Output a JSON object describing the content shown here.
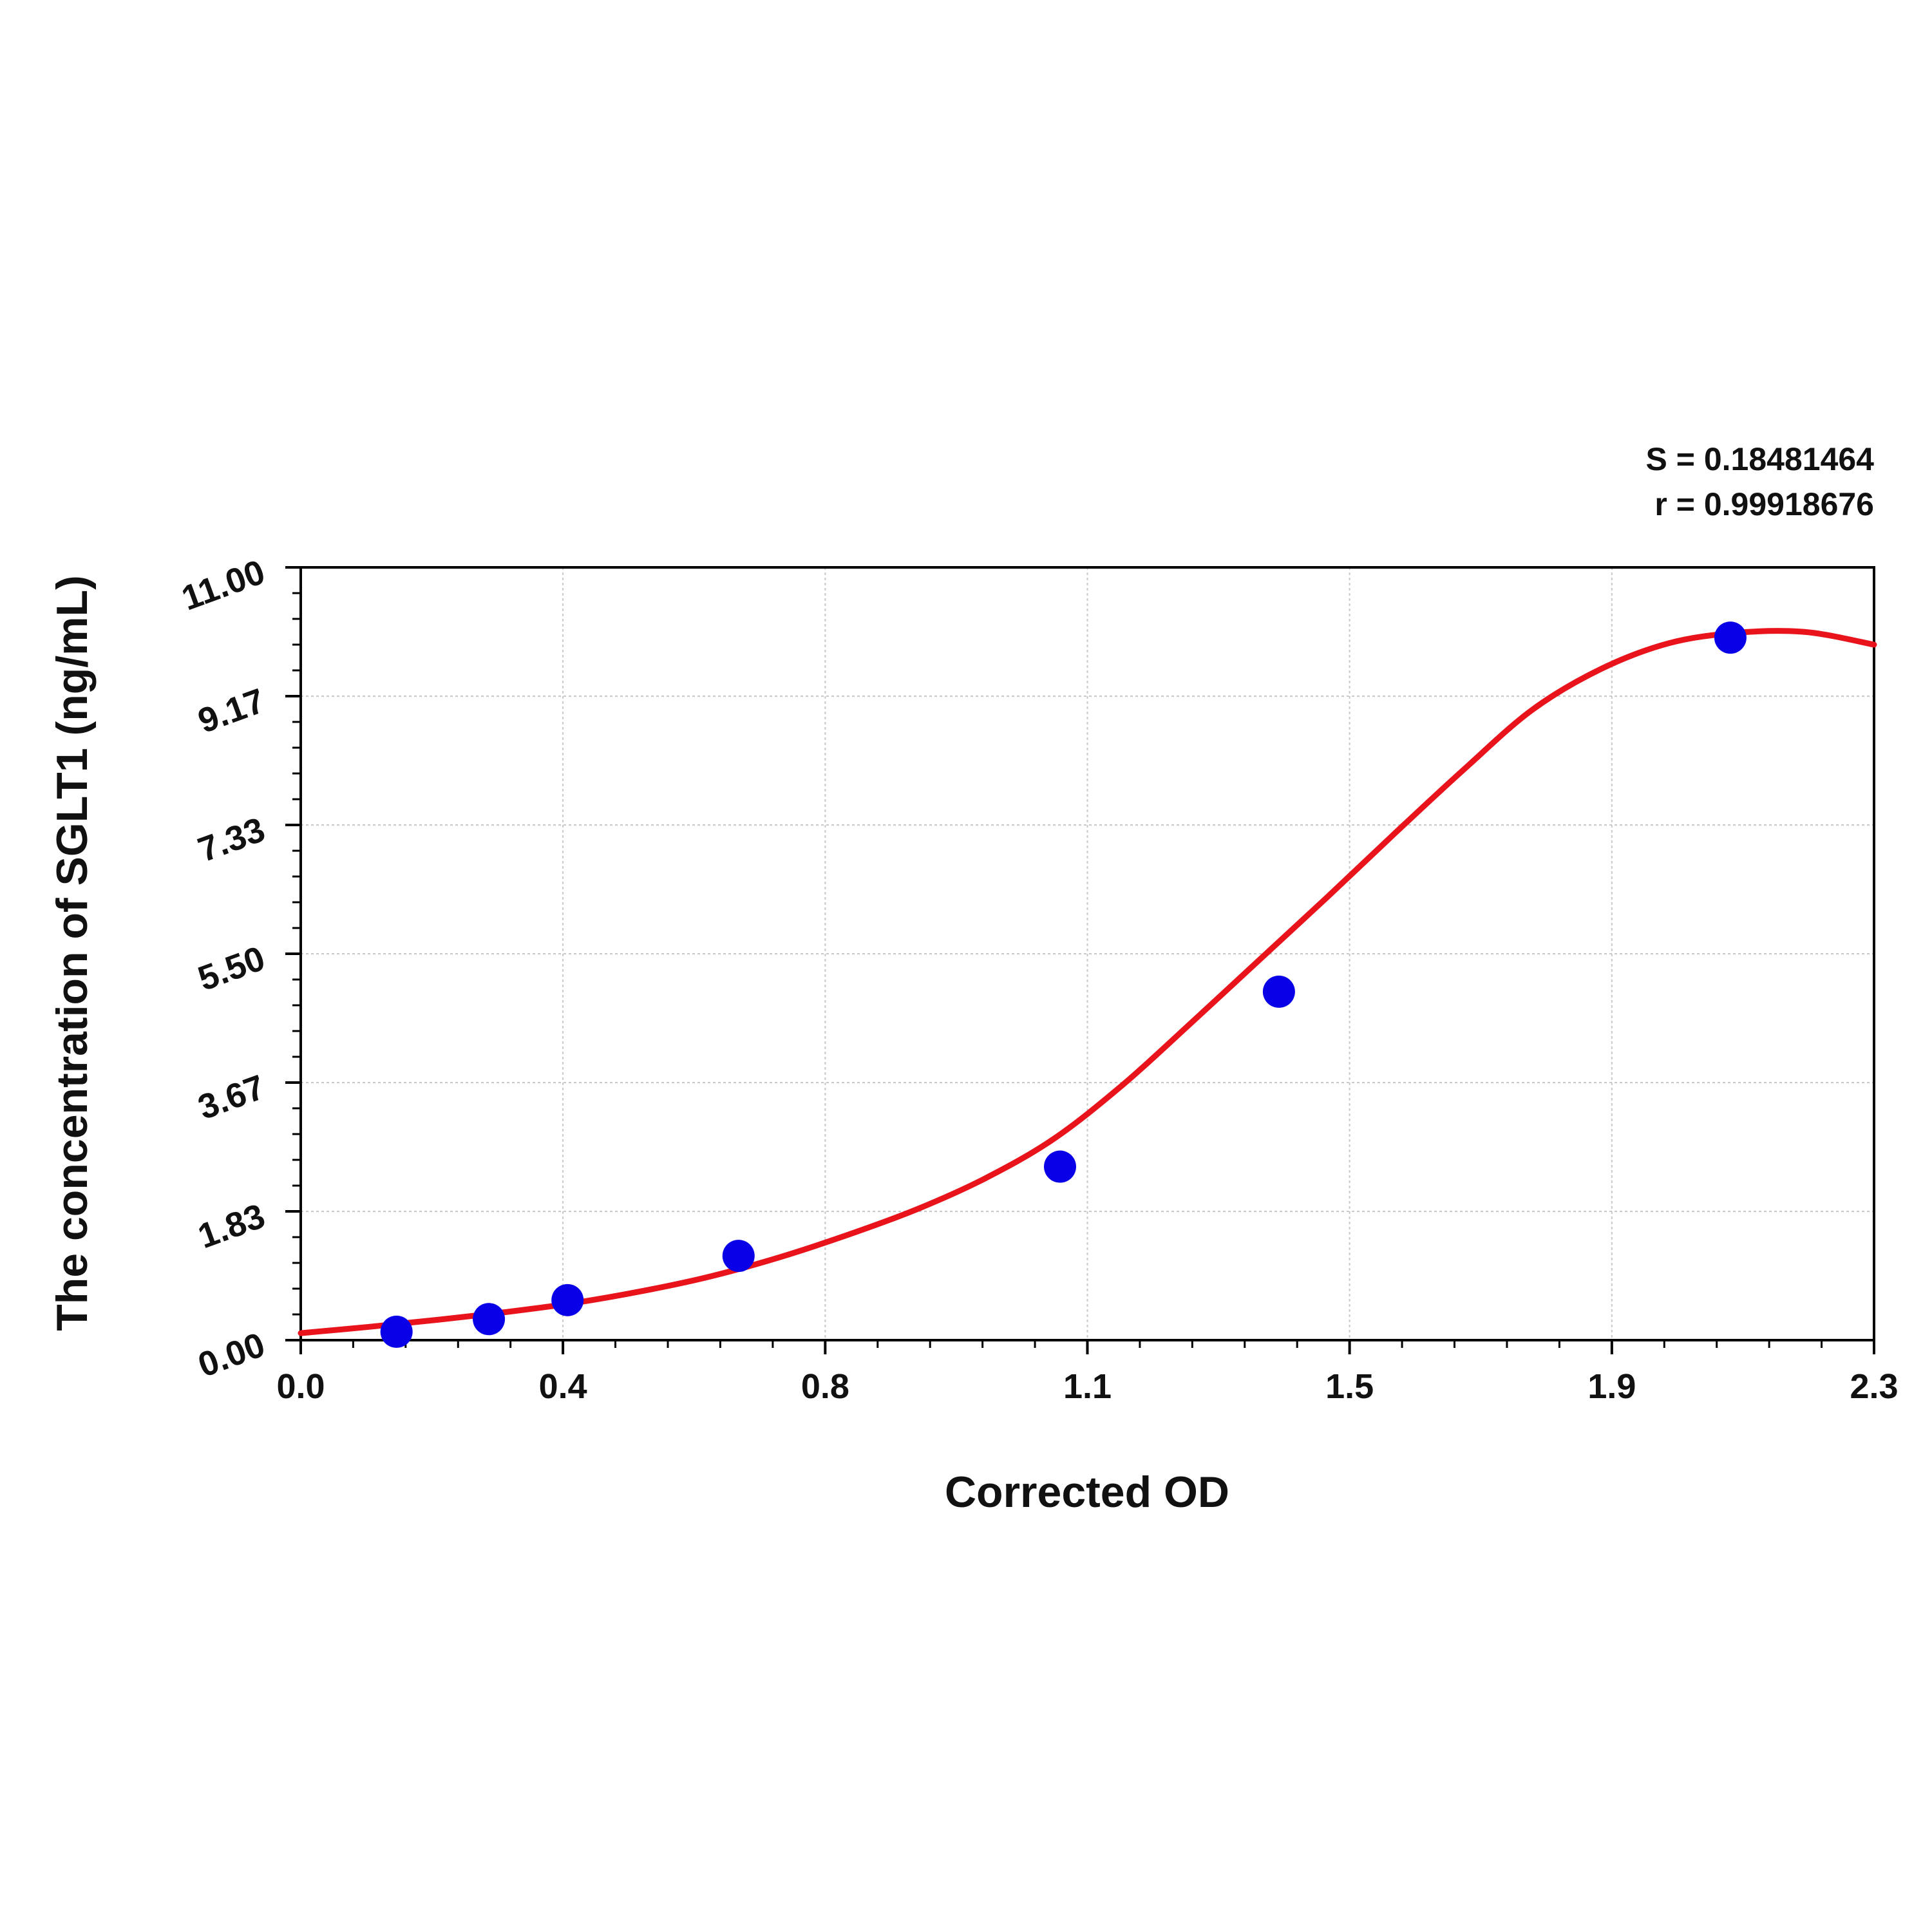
{
  "chart_data": {
    "type": "scatter",
    "title": "",
    "xlabel": "Corrected OD",
    "ylabel": "The concentration of SGLT1 (ng/mL)",
    "xlim": [
      0.0,
      2.3
    ],
    "ylim": [
      0.0,
      11.0
    ],
    "x_ticks": [
      "0.0",
      "0.4",
      "0.8",
      "1.1",
      "1.5",
      "1.9",
      "2.3"
    ],
    "x_tick_values": [
      0.0,
      0.3833,
      0.7667,
      1.15,
      1.5333,
      1.9167,
      2.3
    ],
    "y_ticks": [
      "0.00",
      "1.83",
      "3.67",
      "5.50",
      "7.33",
      "9.17",
      "11.00"
    ],
    "y_tick_values": [
      0.0,
      1.833,
      3.667,
      5.5,
      7.333,
      9.167,
      11.0
    ],
    "grid": true,
    "annotations": [
      "S = 0.18481464",
      "r = 0.99918676"
    ],
    "series": [
      {
        "type": "scatter",
        "color": "#0a00e8",
        "points": [
          {
            "x": 0.14,
            "y": 0.12
          },
          {
            "x": 0.275,
            "y": 0.3
          },
          {
            "x": 0.39,
            "y": 0.57
          },
          {
            "x": 0.64,
            "y": 1.2
          },
          {
            "x": 1.11,
            "y": 2.47
          },
          {
            "x": 1.43,
            "y": 4.96
          },
          {
            "x": 2.09,
            "y": 10.0
          }
        ]
      },
      {
        "type": "line",
        "color": "#e8131b",
        "x": [
          0.0,
          0.1,
          0.2,
          0.3,
          0.4,
          0.5,
          0.6,
          0.7,
          0.8,
          0.9,
          1.0,
          1.1,
          1.2,
          1.3,
          1.4,
          1.5,
          1.6,
          1.7,
          1.8,
          1.9,
          2.0,
          2.1,
          2.2,
          2.3
        ],
        "y": [
          0.1,
          0.19,
          0.29,
          0.4,
          0.53,
          0.7,
          0.91,
          1.18,
          1.5,
          1.86,
          2.3,
          2.86,
          3.62,
          4.5,
          5.4,
          6.3,
          7.22,
          8.12,
          8.97,
          9.55,
          9.92,
          10.07,
          10.08,
          9.9
        ]
      }
    ]
  }
}
